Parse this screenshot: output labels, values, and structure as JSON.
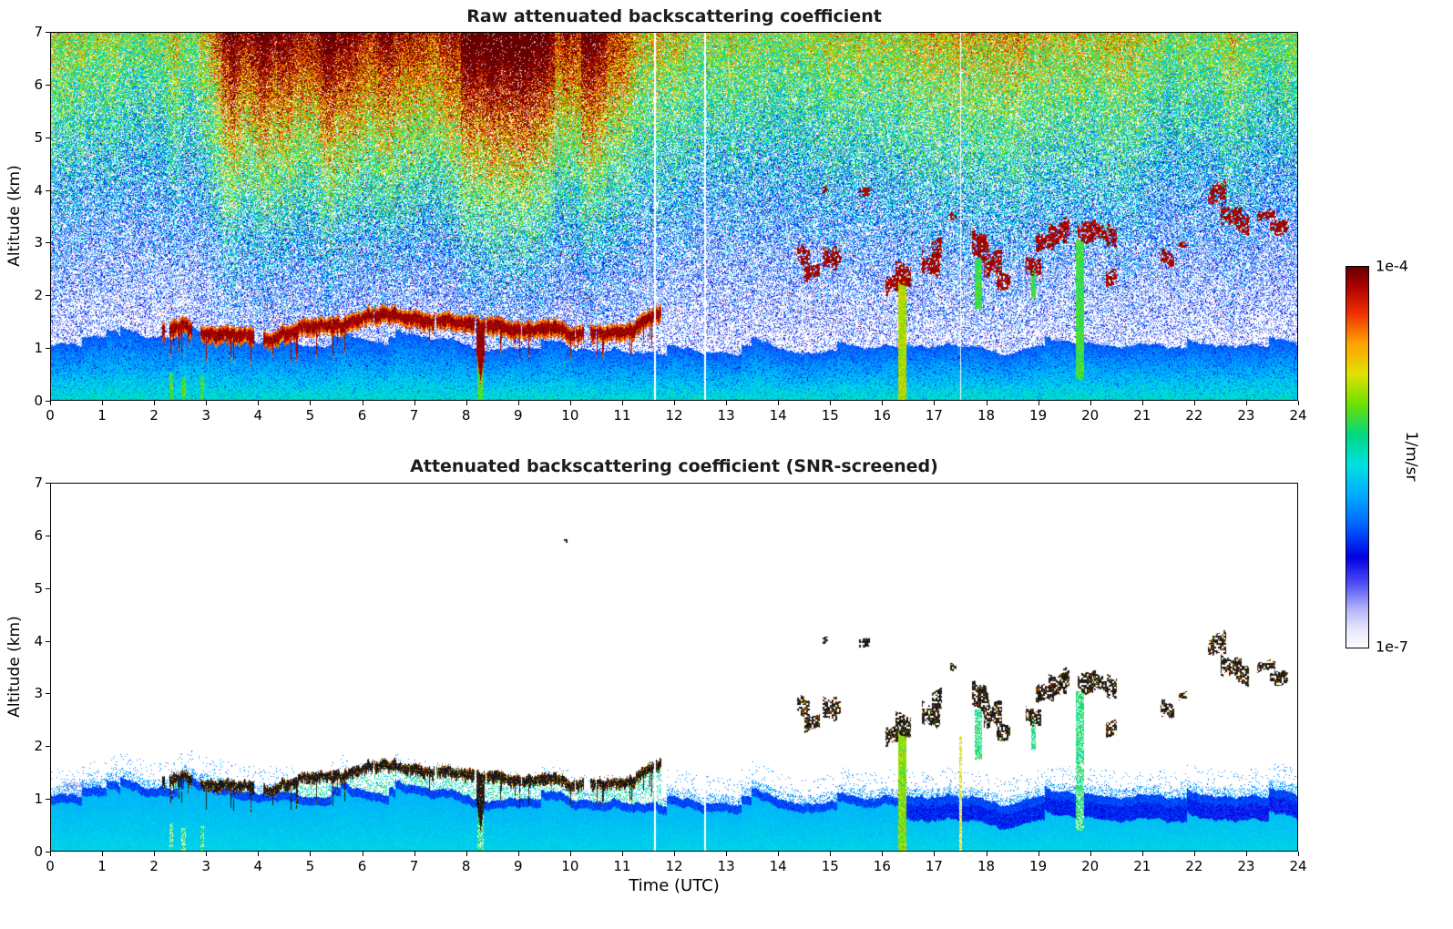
{
  "colorbar": {
    "max_label": "1e-4",
    "min_label": "1e-7",
    "units_label": "1/m/sr",
    "scale": "log",
    "top_color": "#640000",
    "bottom_color": "#ffffff"
  },
  "chart_data": [
    {
      "type": "heatmap",
      "panel": "raw",
      "title": "Raw attenuated backscattering coefficient",
      "xlabel": "",
      "ylabel": "Altitude (km)",
      "xlim": [
        0,
        24
      ],
      "ylim": [
        0,
        7
      ],
      "x_ticks": [
        0,
        1,
        2,
        3,
        4,
        5,
        6,
        7,
        8,
        9,
        10,
        11,
        12,
        13,
        14,
        15,
        16,
        17,
        18,
        19,
        20,
        21,
        22,
        23,
        24
      ],
      "y_ticks": [
        0,
        1,
        2,
        3,
        4,
        5,
        6,
        7
      ],
      "x_units": "hours UTC",
      "y_units": "km",
      "value_units": "1/m/sr",
      "value_scale": "log10",
      "value_min": 1e-07,
      "value_max": 0.0001,
      "grid": false,
      "features": {
        "boundary_layer": {
          "description": "Strong cyan/blue aerosol layer from the surface to about 0.8-1.3 km across all 24 h",
          "top_targets_km": [
            [
              0,
              1.05
            ],
            [
              1.8,
              1.13
            ],
            [
              3.2,
              1.03
            ],
            [
              8,
              0.97
            ],
            [
              11.5,
              0.88
            ],
            [
              13,
              0.84
            ],
            [
              15.5,
              1.0
            ]
          ]
        },
        "cloud_deck": {
          "description": "Saturated dark-red wavy cloud deck",
          "t": [
            2.15,
            11.75
          ],
          "alt_range_km": [
            0.95,
            1.85
          ],
          "notch": {
            "t": 8.27,
            "base_km": 0.38
          }
        },
        "elevated_clouds": [
          [
            14.35,
            14.6,
            2.55,
            2.95
          ],
          [
            14.5,
            14.8,
            2.3,
            2.6
          ],
          [
            14.85,
            15.2,
            2.55,
            3.05
          ],
          [
            14.85,
            14.95,
            3.95,
            4.1
          ],
          [
            15.55,
            15.75,
            3.85,
            4.05
          ],
          [
            16.05,
            16.3,
            2.0,
            2.45
          ],
          [
            16.25,
            16.55,
            2.2,
            2.7
          ],
          [
            16.75,
            17.1,
            2.35,
            2.8
          ],
          [
            16.95,
            17.15,
            2.7,
            3.1
          ],
          [
            17.3,
            17.42,
            3.45,
            3.6
          ],
          [
            17.72,
            18.05,
            2.65,
            3.25
          ],
          [
            17.95,
            18.3,
            2.3,
            2.8
          ],
          [
            18.2,
            18.45,
            2.15,
            2.5
          ],
          [
            18.75,
            19.05,
            2.4,
            2.85
          ],
          [
            18.95,
            19.3,
            2.7,
            3.2
          ],
          [
            19.2,
            19.6,
            2.95,
            3.55
          ],
          [
            19.75,
            20.05,
            3.05,
            3.5
          ],
          [
            20.05,
            20.5,
            2.95,
            3.4
          ],
          [
            20.3,
            20.5,
            2.2,
            2.5
          ],
          [
            21.35,
            21.6,
            2.5,
            2.85
          ],
          [
            21.7,
            21.85,
            2.85,
            3.05
          ],
          [
            22.25,
            22.6,
            3.65,
            4.15
          ],
          [
            22.5,
            22.9,
            3.35,
            3.85
          ],
          [
            22.8,
            23.05,
            3.1,
            3.5
          ],
          [
            23.2,
            23.55,
            3.35,
            3.65
          ],
          [
            23.45,
            23.8,
            3.2,
            3.5
          ],
          [
            9.88,
            9.94,
            5.85,
            5.95
          ]
        ],
        "virga_streaks": [
          [
            16.3,
            16.45,
            0,
            2.35,
            "yellow-green"
          ],
          [
            19.72,
            19.88,
            0.4,
            3.05,
            "green"
          ],
          [
            8.2,
            8.33,
            0,
            1.05,
            "green"
          ],
          [
            2.28,
            2.36,
            0,
            0.55,
            "green"
          ],
          [
            2.52,
            2.6,
            0,
            0.45,
            "green"
          ],
          [
            2.88,
            2.96,
            0,
            0.5,
            "green"
          ],
          [
            17.78,
            17.92,
            1.75,
            2.7,
            "green"
          ],
          [
            18.85,
            18.95,
            1.95,
            2.5,
            "green"
          ]
        ],
        "noise_stripes": [
          [
            2.25,
            2.5,
            0.12
          ],
          [
            3.3,
            3.55,
            0.1
          ],
          [
            4.35,
            4.65,
            0.12
          ],
          [
            5.2,
            5.5,
            0.1
          ],
          [
            6.3,
            6.6,
            0.08
          ],
          [
            7.9,
            9.7,
            0.14
          ],
          [
            10.2,
            10.7,
            0.12
          ]
        ],
        "red_noise_window": [
          2.6,
          4.2,
          10.2,
          11.8
        ],
        "data_gaps": [
          11.62,
          12.58,
          17.5
        ],
        "noise": {
          "description": "Random speckle noise increasing with altitude; mostly blue dots 1-3 km, green 3-5 km, yellow/orange/red 5-7 km, strongest dark-red noise between ~03 and ~11.5 UTC"
        }
      }
    },
    {
      "type": "heatmap",
      "panel": "screened",
      "title": "Attenuated backscattering coefficient (SNR-screened)",
      "xlabel": "Time (UTC)",
      "ylabel": "Altitude (km)",
      "xlim": [
        0,
        24
      ],
      "ylim": [
        0,
        7
      ],
      "x_ticks": [
        0,
        1,
        2,
        3,
        4,
        5,
        6,
        7,
        8,
        9,
        10,
        11,
        12,
        13,
        14,
        15,
        16,
        17,
        18,
        19,
        20,
        21,
        22,
        23,
        24
      ],
      "y_ticks": [
        0,
        1,
        2,
        3,
        4,
        5,
        6,
        7
      ],
      "x_units": "hours UTC",
      "y_units": "km",
      "value_units": "1/m/sr",
      "value_scale": "log10",
      "value_min": 1e-07,
      "value_max": 0.0001,
      "grid": false,
      "features": {
        "data_gaps": [
          11.62,
          12.58
        ],
        "pale_streak": [
          17.48,
          17.53,
          0,
          2.2
        ],
        "note": "Same scene as raw panel with low-SNR pixels removed (white background): cyan/blue boundary layer below ~1.2 km, black cloud deck 02:10-11:45 UTC at 1-1.8 km with orange/red fringes, elevated black cloud fragments 14:20-24:00 UTC at 2-4.2 km, green virga/precipitation streaks near 08:15, 16:21 and 19:48 UTC"
      }
    }
  ]
}
